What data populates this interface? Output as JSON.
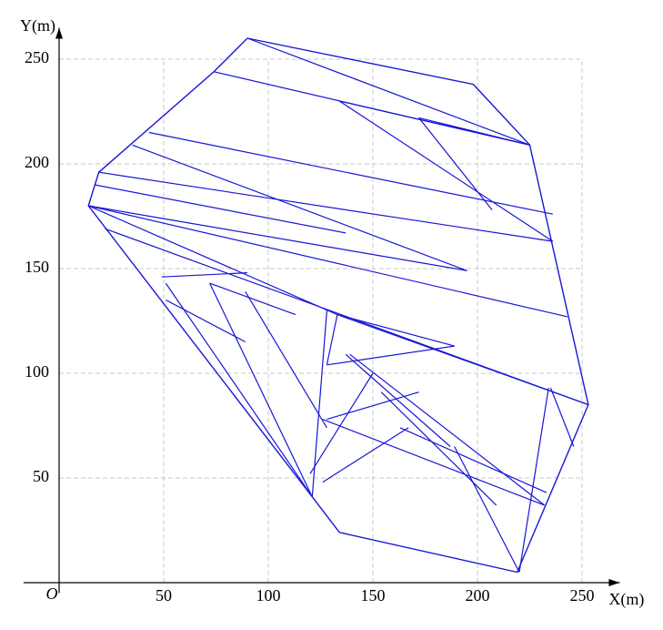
{
  "chart_data": {
    "type": "mesh",
    "x_label": "X(m)",
    "y_label": "Y(m)",
    "origin_label": "O",
    "xlim": [
      -17,
      268
    ],
    "ylim": [
      -5,
      265
    ],
    "xticks": [
      50,
      100,
      150,
      200,
      250
    ],
    "yticks": [
      50,
      100,
      150,
      200,
      250
    ],
    "grid": true,
    "color": "#1616d6",
    "boundary": {
      "x": [
        90,
        198,
        225,
        253,
        219,
        134,
        121,
        14,
        19,
        74,
        90
      ],
      "y": [
        260,
        238,
        209,
        85,
        5,
        24,
        41,
        180,
        196,
        244,
        260
      ]
    },
    "edges": [
      [
        74,
        244,
        225,
        209
      ],
      [
        90,
        260,
        225,
        209
      ],
      [
        43,
        215,
        236,
        176
      ],
      [
        134,
        230,
        225,
        209
      ],
      [
        134,
        230,
        236,
        163
      ],
      [
        35,
        209,
        195,
        149
      ],
      [
        19,
        196,
        236,
        163
      ],
      [
        14,
        180,
        243,
        127
      ],
      [
        14,
        180,
        195,
        149
      ],
      [
        17,
        190,
        137,
        167
      ],
      [
        22,
        169,
        253,
        85
      ],
      [
        14,
        180,
        133,
        128
      ],
      [
        49,
        146,
        90,
        148
      ],
      [
        172,
        222,
        225,
        209
      ],
      [
        172,
        222,
        207,
        178
      ],
      [
        51,
        143,
        121,
        41
      ],
      [
        51,
        135,
        89,
        115
      ],
      [
        72,
        143,
        121,
        41
      ],
      [
        133,
        128,
        253,
        85
      ],
      [
        139,
        109,
        232,
        37
      ],
      [
        126,
        78,
        232,
        37
      ],
      [
        128,
        104,
        189,
        113
      ],
      [
        137,
        109,
        187,
        65
      ],
      [
        89,
        139,
        128,
        74
      ],
      [
        121,
        41,
        128,
        130
      ],
      [
        154,
        91,
        209,
        37
      ],
      [
        163,
        74,
        233,
        43
      ],
      [
        189,
        65,
        220,
        5
      ],
      [
        235,
        93,
        246,
        65
      ],
      [
        234,
        93,
        220,
        5
      ],
      [
        128,
        78,
        172,
        91
      ],
      [
        120,
        52,
        150,
        100
      ],
      [
        126,
        48,
        167,
        74
      ],
      [
        133,
        128,
        189,
        113
      ],
      [
        128,
        104,
        133,
        128
      ],
      [
        72,
        143,
        113,
        128
      ]
    ]
  }
}
